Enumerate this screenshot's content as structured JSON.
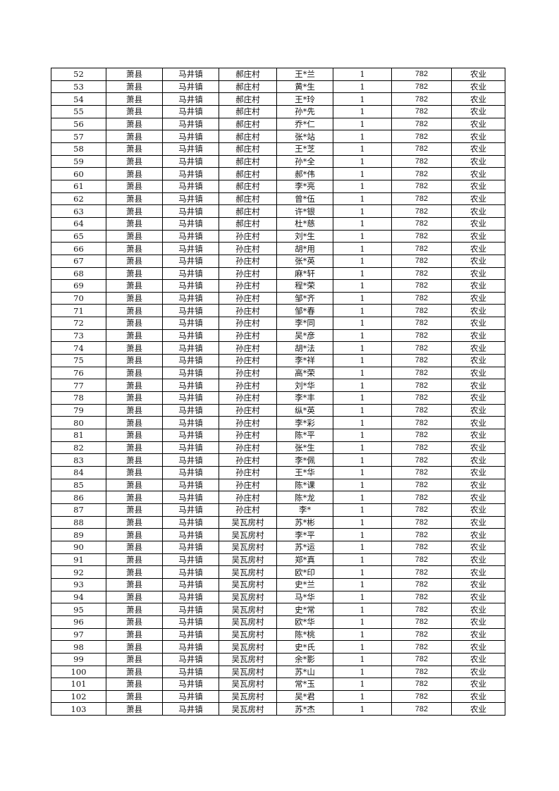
{
  "rows": [
    [
      "52",
      "萧县",
      "马井镇",
      "郝庄村",
      "王*兰",
      "1",
      "782",
      "农业"
    ],
    [
      "53",
      "萧县",
      "马井镇",
      "郝庄村",
      "黄*生",
      "1",
      "782",
      "农业"
    ],
    [
      "54",
      "萧县",
      "马井镇",
      "郝庄村",
      "王*玲",
      "1",
      "782",
      "农业"
    ],
    [
      "55",
      "萧县",
      "马井镇",
      "郝庄村",
      "孙*先",
      "1",
      "782",
      "农业"
    ],
    [
      "56",
      "萧县",
      "马井镇",
      "郝庄村",
      "乔*仁",
      "1",
      "782",
      "农业"
    ],
    [
      "57",
      "萧县",
      "马井镇",
      "郝庄村",
      "张*站",
      "1",
      "782",
      "农业"
    ],
    [
      "58",
      "萧县",
      "马井镇",
      "郝庄村",
      "王*芝",
      "1",
      "782",
      "农业"
    ],
    [
      "59",
      "萧县",
      "马井镇",
      "郝庄村",
      "孙*全",
      "1",
      "782",
      "农业"
    ],
    [
      "60",
      "萧县",
      "马井镇",
      "郝庄村",
      "郝*伟",
      "1",
      "782",
      "农业"
    ],
    [
      "61",
      "萧县",
      "马井镇",
      "郝庄村",
      "李*亮",
      "1",
      "782",
      "农业"
    ],
    [
      "62",
      "萧县",
      "马井镇",
      "郝庄村",
      "曾*伍",
      "1",
      "782",
      "农业"
    ],
    [
      "63",
      "萧县",
      "马井镇",
      "郝庄村",
      "许*银",
      "1",
      "782",
      "农业"
    ],
    [
      "64",
      "萧县",
      "马井镇",
      "郝庄村",
      "杜*慈",
      "1",
      "782",
      "农业"
    ],
    [
      "65",
      "萧县",
      "马井镇",
      "孙庄村",
      "刘*生",
      "1",
      "782",
      "农业"
    ],
    [
      "66",
      "萧县",
      "马井镇",
      "孙庄村",
      "胡*用",
      "1",
      "782",
      "农业"
    ],
    [
      "67",
      "萧县",
      "马井镇",
      "孙庄村",
      "张*英",
      "1",
      "782",
      "农业"
    ],
    [
      "68",
      "萧县",
      "马井镇",
      "孙庄村",
      "麻*轩",
      "1",
      "782",
      "农业"
    ],
    [
      "69",
      "萧县",
      "马井镇",
      "孙庄村",
      "程*荣",
      "1",
      "782",
      "农业"
    ],
    [
      "70",
      "萧县",
      "马井镇",
      "孙庄村",
      "邹*齐",
      "1",
      "782",
      "农业"
    ],
    [
      "71",
      "萧县",
      "马井镇",
      "孙庄村",
      "邹*春",
      "1",
      "782",
      "农业"
    ],
    [
      "72",
      "萧县",
      "马井镇",
      "孙庄村",
      "李*同",
      "1",
      "782",
      "农业"
    ],
    [
      "73",
      "萧县",
      "马井镇",
      "孙庄村",
      "吴*彦",
      "1",
      "782",
      "农业"
    ],
    [
      "74",
      "萧县",
      "马井镇",
      "孙庄村",
      "胡*法",
      "1",
      "782",
      "农业"
    ],
    [
      "75",
      "萧县",
      "马井镇",
      "孙庄村",
      "李*祥",
      "1",
      "782",
      "农业"
    ],
    [
      "76",
      "萧县",
      "马井镇",
      "孙庄村",
      "高*荣",
      "1",
      "782",
      "农业"
    ],
    [
      "77",
      "萧县",
      "马井镇",
      "孙庄村",
      "刘*华",
      "1",
      "782",
      "农业"
    ],
    [
      "78",
      "萧县",
      "马井镇",
      "孙庄村",
      "李*丰",
      "1",
      "782",
      "农业"
    ],
    [
      "79",
      "萧县",
      "马井镇",
      "孙庄村",
      "纵*英",
      "1",
      "782",
      "农业"
    ],
    [
      "80",
      "萧县",
      "马井镇",
      "孙庄村",
      "李*彩",
      "1",
      "782",
      "农业"
    ],
    [
      "81",
      "萧县",
      "马井镇",
      "孙庄村",
      "陈*平",
      "1",
      "782",
      "农业"
    ],
    [
      "82",
      "萧县",
      "马井镇",
      "孙庄村",
      "张*生",
      "1",
      "782",
      "农业"
    ],
    [
      "83",
      "萧县",
      "马井镇",
      "孙庄村",
      "李*佩",
      "1",
      "782",
      "农业"
    ],
    [
      "84",
      "萧县",
      "马井镇",
      "孙庄村",
      "王*华",
      "1",
      "782",
      "农业"
    ],
    [
      "85",
      "萧县",
      "马井镇",
      "孙庄村",
      "陈*课",
      "1",
      "782",
      "农业"
    ],
    [
      "86",
      "萧县",
      "马井镇",
      "孙庄村",
      "陈*龙",
      "1",
      "782",
      "农业"
    ],
    [
      "87",
      "萧县",
      "马井镇",
      "孙庄村",
      "李*",
      "1",
      "782",
      "农业"
    ],
    [
      "88",
      "萧县",
      "马井镇",
      "吴瓦房村",
      "苏*彬",
      "1",
      "782",
      "农业"
    ],
    [
      "89",
      "萧县",
      "马井镇",
      "吴瓦房村",
      "李*平",
      "1",
      "782",
      "农业"
    ],
    [
      "90",
      "萧县",
      "马井镇",
      "吴瓦房村",
      "苏*运",
      "1",
      "782",
      "农业"
    ],
    [
      "91",
      "萧县",
      "马井镇",
      "吴瓦房村",
      "郑*真",
      "1",
      "782",
      "农业"
    ],
    [
      "92",
      "萧县",
      "马井镇",
      "吴瓦房村",
      "欧*印",
      "1",
      "782",
      "农业"
    ],
    [
      "93",
      "萧县",
      "马井镇",
      "吴瓦房村",
      "史*兰",
      "1",
      "782",
      "农业"
    ],
    [
      "94",
      "萧县",
      "马井镇",
      "吴瓦房村",
      "马*华",
      "1",
      "782",
      "农业"
    ],
    [
      "95",
      "萧县",
      "马井镇",
      "吴瓦房村",
      "史*常",
      "1",
      "782",
      "农业"
    ],
    [
      "96",
      "萧县",
      "马井镇",
      "吴瓦房村",
      "欧*华",
      "1",
      "782",
      "农业"
    ],
    [
      "97",
      "萧县",
      "马井镇",
      "吴瓦房村",
      "陈*桃",
      "1",
      "782",
      "农业"
    ],
    [
      "98",
      "萧县",
      "马井镇",
      "吴瓦房村",
      "史*氏",
      "1",
      "782",
      "农业"
    ],
    [
      "99",
      "萧县",
      "马井镇",
      "吴瓦房村",
      "余*影",
      "1",
      "782",
      "农业"
    ],
    [
      "100",
      "萧县",
      "马井镇",
      "吴瓦房村",
      "苏*山",
      "1",
      "782",
      "农业"
    ],
    [
      "101",
      "萧县",
      "马井镇",
      "吴瓦房村",
      "常*玉",
      "1",
      "782",
      "农业"
    ],
    [
      "102",
      "萧县",
      "马井镇",
      "吴瓦房村",
      "吴*君",
      "1",
      "782",
      "农业"
    ],
    [
      "103",
      "萧县",
      "马井镇",
      "吴瓦房村",
      "苏*杰",
      "1",
      "782",
      "农业"
    ]
  ]
}
